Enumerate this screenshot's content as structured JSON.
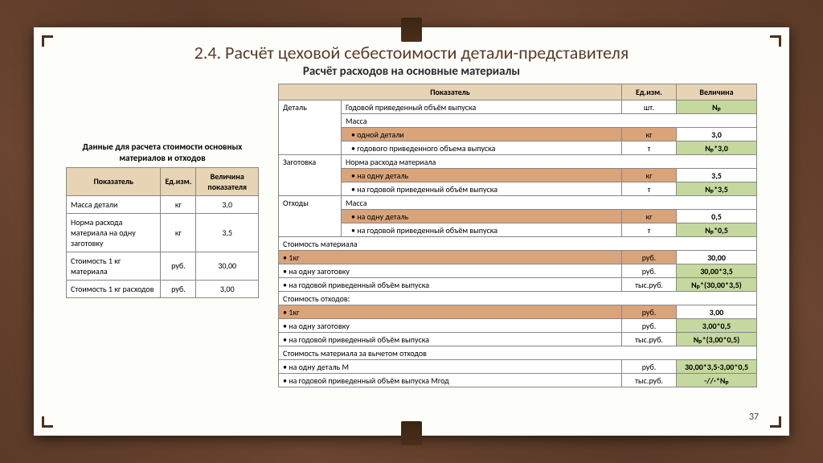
{
  "page_number": "37",
  "title": "2.4. Расчёт цеховой себестоимости  детали-представителя",
  "subtitle": "Расчёт расходов на основные материалы",
  "colors": {
    "header_bg": "#e6d4b4",
    "section_bg": "#d9a47a",
    "value_bg": "#c5d89e",
    "border": "#888888",
    "title_color": "#5a3a28",
    "slide_bg": "#fdfdfa",
    "wood_bg": "#5a3a28"
  },
  "left_table": {
    "caption": "Данные для расчета стоимости основных материалов и отходов",
    "columns": [
      "Показатель",
      "Ед.изм.",
      "Величина показателя"
    ],
    "rows": [
      [
        "Масса детали",
        "кг",
        "3,0"
      ],
      [
        "Норма расхода материала на одну заготовку",
        "кг",
        "3,5"
      ],
      [
        "Стоимость 1 кг материала",
        "руб.",
        "30,00"
      ],
      [
        "Стоимость 1 кг расходов",
        "руб.",
        "3,00"
      ]
    ]
  },
  "right_table": {
    "columns": [
      "Показатель",
      "Ед.изм.",
      "Величина"
    ],
    "groups": {
      "g1": "Деталь",
      "g2": "Заготовка",
      "g3": "Отходы"
    },
    "rows": {
      "r1": {
        "label": "Годовой приведенный объём выпуска",
        "unit": "шт.",
        "val": "Nₚ"
      },
      "r2": {
        "label": "Масса",
        "unit": "",
        "val": ""
      },
      "r3": {
        "label": "одной детали",
        "unit": "кг",
        "val": "3,0"
      },
      "r4": {
        "label": "годового приведенного объема выпуска",
        "unit": "т",
        "val": "Nₚ*3,0"
      },
      "r5": {
        "label": "Норма расхода материала",
        "unit": "",
        "val": ""
      },
      "r6": {
        "label": "на одну деталь",
        "unit": "кг",
        "val": "3,5"
      },
      "r7": {
        "label": "на годовой приведенный объём выпуска",
        "unit": "т",
        "val": "Nₚ*3,5"
      },
      "r8": {
        "label": "Масса",
        "unit": "",
        "val": ""
      },
      "r9": {
        "label": "на одну деталь",
        "unit": "кг",
        "val": "0,5"
      },
      "r10": {
        "label": "на годовой приведенный объём выпуска",
        "unit": "т",
        "val": "Nₚ*0,5"
      },
      "r11": {
        "label": "Стоимость материала",
        "unit": "",
        "val": ""
      },
      "r12": {
        "label": "1кг",
        "unit": "руб.",
        "val": "30,00"
      },
      "r13": {
        "label": "на одну заготовку",
        "unit": "руб.",
        "val": "30,00*3,5"
      },
      "r14": {
        "label": "на годовой приведенный объём выпуска",
        "unit": "тыс.руб.",
        "val": "Nₚ*(30,00*3,5)"
      },
      "r15": {
        "label": "Стоимость отходов:",
        "unit": "",
        "val": ""
      },
      "r16": {
        "label": "1кг",
        "unit": "руб.",
        "val": "3,00"
      },
      "r17": {
        "label": "на одну заготовку",
        "unit": "руб.",
        "val": "3,00*0,5"
      },
      "r18": {
        "label": "на годовой приведенный объём выпуска",
        "unit": "тыс.руб.",
        "val": "Nₚ*(3,00*0,5)"
      },
      "r19": {
        "label": "Стоимость материала за вычетом отходов",
        "unit": "",
        "val": ""
      },
      "r20": {
        "label": "на одну деталь М",
        "unit": "руб.",
        "val": "30,00*3,5-3,00*0,5"
      },
      "r21": {
        "label": "на годовой приведенный объём выпуска Mгод",
        "unit": "тыс.руб.",
        "val": "-//-*Nₚ"
      }
    }
  }
}
